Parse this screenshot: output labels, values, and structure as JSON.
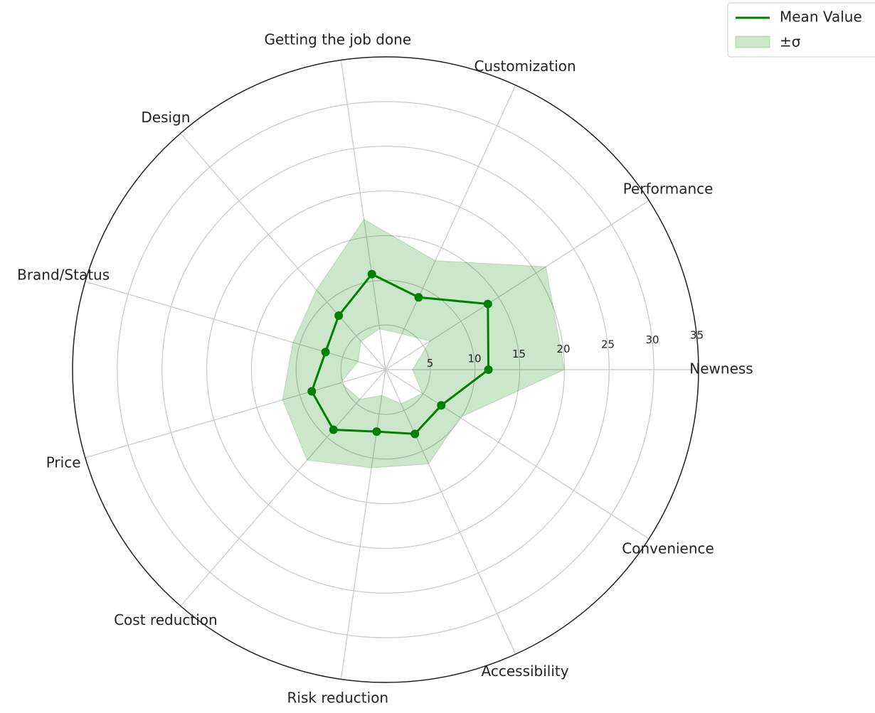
{
  "chart_data": {
    "type": "radar",
    "categories": [
      "Newness",
      "Performance",
      "Customization",
      "Getting the job done",
      "Design",
      "Brand/Status",
      "Price",
      "Cost reduction",
      "Risk reduction",
      "Accessibility",
      "Convenience"
    ],
    "series": [
      {
        "name": "Mean Value",
        "color": "#008000",
        "values": [
          11.5,
          13.6,
          8.9,
          10.8,
          8.0,
          7.0,
          8.6,
          8.9,
          7.0,
          7.9,
          7.4
        ]
      },
      {
        "name": "±σ",
        "color": "#008000",
        "values": [
          8.5,
          7.7,
          4.5,
          6.2,
          3.8,
          3.8,
          3.4,
          4.5,
          4.1,
          3.7,
          2.5
        ]
      }
    ],
    "rlim": [
      0,
      35
    ],
    "rticks": [
      5,
      10,
      15,
      20,
      25,
      30,
      35
    ],
    "grid": true,
    "legend": "upper right"
  }
}
